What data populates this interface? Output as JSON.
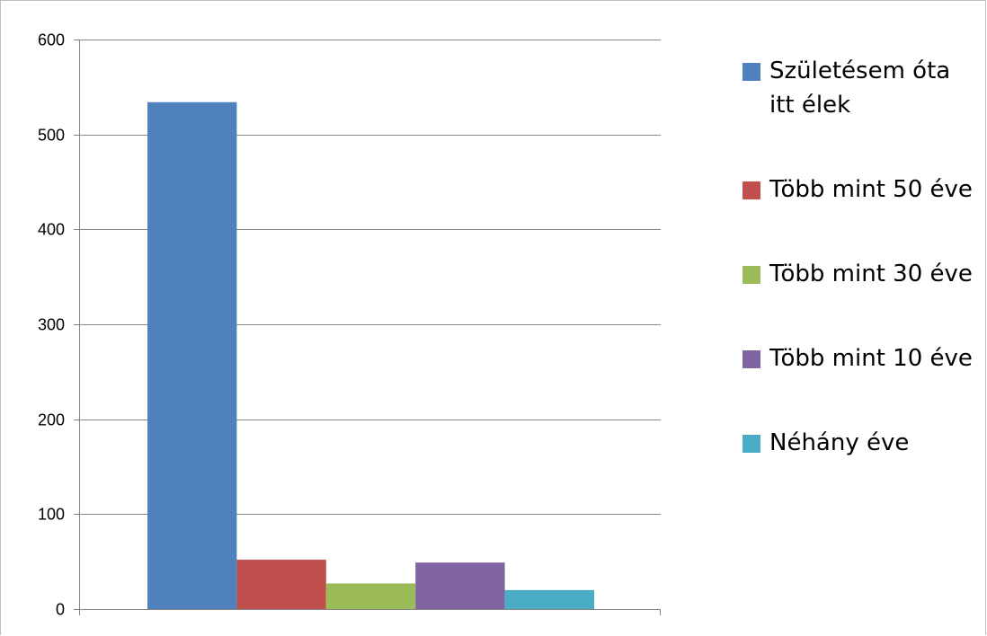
{
  "chart_data": {
    "type": "bar",
    "categories": [
      ""
    ],
    "series": [
      {
        "name": "Születésem óta itt élek",
        "values": [
          534
        ],
        "color": "#4F81BD"
      },
      {
        "name": "Több mint 50 éve",
        "values": [
          52
        ],
        "color": "#C0504D"
      },
      {
        "name": "Több mint 30 éve",
        "values": [
          27
        ],
        "color": "#9BBB59"
      },
      {
        "name": "Több mint 10 éve",
        "values": [
          49
        ],
        "color": "#8064A2"
      },
      {
        "name": "Néhány éve",
        "values": [
          20
        ],
        "color": "#4BACC6"
      }
    ],
    "ylim": [
      0,
      600
    ],
    "yticks": [
      "0",
      "100",
      "200",
      "300",
      "400",
      "500",
      "600"
    ],
    "grid": true,
    "legend_position": "right"
  }
}
